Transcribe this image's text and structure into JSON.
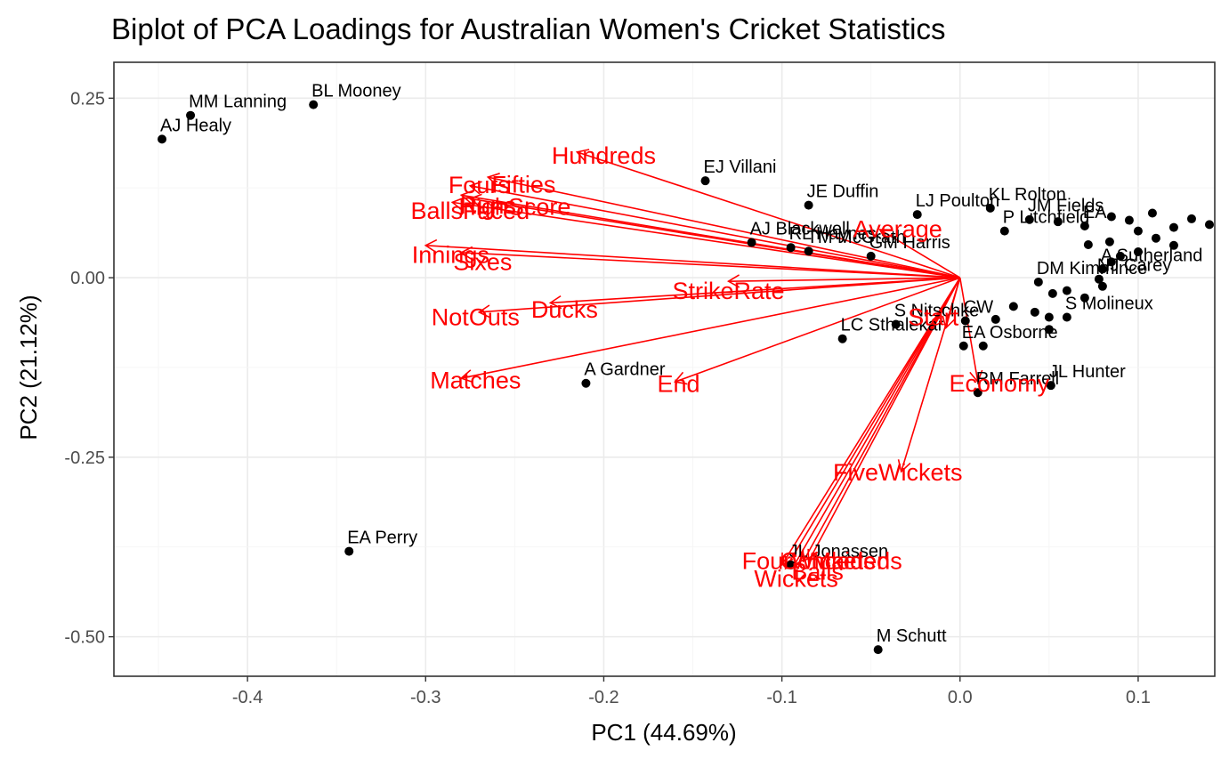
{
  "chart_data": {
    "type": "scatter",
    "title": "Biplot of PCA Loadings for Australian Women's Cricket Statistics",
    "xlabel": "PC1 (44.69%)",
    "ylabel": "PC2 (21.12%)",
    "xlim": [
      -0.475,
      0.143
    ],
    "ylim": [
      -0.555,
      0.3
    ],
    "xticks": [
      -0.4,
      -0.3,
      -0.2,
      -0.1,
      0.0,
      0.1
    ],
    "xtick_labels": [
      "-0.4",
      "-0.3",
      "-0.2",
      "-0.1",
      "0.0",
      "0.1"
    ],
    "yticks": [
      0.25,
      0.0,
      -0.25,
      -0.5
    ],
    "ytick_labels": [
      "0.25",
      "0.00",
      "-0.25",
      "-0.50"
    ],
    "grid": true,
    "point_color": "#000000",
    "loading_color": "#ff0000",
    "arrow_origin": [
      0.0,
      0.0
    ],
    "points": [
      {
        "label": "AJ Healy",
        "x": -0.448,
        "y": 0.193
      },
      {
        "label": "MM Lanning",
        "x": -0.432,
        "y": 0.226
      },
      {
        "label": "BL Mooney",
        "x": -0.363,
        "y": 0.241
      },
      {
        "label": "EJ Villani",
        "x": -0.143,
        "y": 0.135
      },
      {
        "label": "JE Duffin",
        "x": -0.085,
        "y": 0.101
      },
      {
        "label": "AJ Blackwell",
        "x": -0.117,
        "y": 0.049
      },
      {
        "label": "RL Haynes",
        "x": -0.095,
        "y": 0.042
      },
      {
        "label": "TM McGrath",
        "x": -0.085,
        "y": 0.037
      },
      {
        "label": "GM Harris",
        "x": -0.05,
        "y": 0.03
      },
      {
        "label": "LJ Poulton",
        "x": -0.024,
        "y": 0.088
      },
      {
        "label": "KL Rolton",
        "x": 0.017,
        "y": 0.097
      },
      {
        "label": "P Litchfield",
        "x": 0.025,
        "y": 0.065
      },
      {
        "label": "JM Fields",
        "x": 0.039,
        "y": 0.081
      },
      {
        "label": "",
        "x": 0.055,
        "y": 0.078
      },
      {
        "label": "EA",
        "x": 0.07,
        "y": 0.072
      },
      {
        "label": "",
        "x": 0.085,
        "y": 0.085
      },
      {
        "label": "",
        "x": 0.095,
        "y": 0.08
      },
      {
        "label": "",
        "x": 0.108,
        "y": 0.09
      },
      {
        "label": "",
        "x": 0.12,
        "y": 0.07
      },
      {
        "label": "",
        "x": 0.13,
        "y": 0.082
      },
      {
        "label": "",
        "x": 0.14,
        "y": 0.074
      },
      {
        "label": "",
        "x": 0.1,
        "y": 0.065
      },
      {
        "label": "",
        "x": 0.11,
        "y": 0.055
      },
      {
        "label": "",
        "x": 0.12,
        "y": 0.045
      },
      {
        "label": "",
        "x": 0.084,
        "y": 0.05
      },
      {
        "label": "",
        "x": 0.09,
        "y": 0.03
      },
      {
        "label": "",
        "x": 0.072,
        "y": 0.046
      },
      {
        "label": "",
        "x": 0.1,
        "y": 0.036
      },
      {
        "label": "A Sutherland",
        "x": 0.08,
        "y": 0.012
      },
      {
        "label": "",
        "x": 0.085,
        "y": 0.022
      },
      {
        "label": "NJ Carey",
        "x": 0.078,
        "y": -0.002
      },
      {
        "label": "DM Kimmince",
        "x": 0.044,
        "y": -0.006
      },
      {
        "label": "",
        "x": 0.052,
        "y": -0.022
      },
      {
        "label": "",
        "x": 0.06,
        "y": -0.018
      },
      {
        "label": "",
        "x": 0.07,
        "y": -0.028
      },
      {
        "label": "",
        "x": 0.08,
        "y": -0.012
      },
      {
        "label": "S Nitschke",
        "x": -0.036,
        "y": -0.065
      },
      {
        "label": "CW",
        "x": 0.003,
        "y": -0.06
      },
      {
        "label": "",
        "x": 0.02,
        "y": -0.058
      },
      {
        "label": "",
        "x": 0.03,
        "y": -0.04
      },
      {
        "label": "",
        "x": 0.042,
        "y": -0.048
      },
      {
        "label": "",
        "x": 0.05,
        "y": -0.055
      },
      {
        "label": "S Molineux",
        "x": 0.06,
        "y": -0.055
      },
      {
        "label": "",
        "x": 0.05,
        "y": -0.072
      },
      {
        "label": "LC Sthalekar",
        "x": -0.066,
        "y": -0.085
      },
      {
        "label": "EA Osborne",
        "x": 0.002,
        "y": -0.095
      },
      {
        "label": "",
        "x": 0.013,
        "y": -0.095
      },
      {
        "label": "A Gardner",
        "x": -0.21,
        "y": -0.147
      },
      {
        "label": "RM Farrell",
        "x": 0.01,
        "y": -0.16
      },
      {
        "label": "JL Hunter",
        "x": 0.051,
        "y": -0.15
      },
      {
        "label": "EA Perry",
        "x": -0.343,
        "y": -0.381
      },
      {
        "label": "JL Jonassen",
        "x": -0.095,
        "y": -0.4
      },
      {
        "label": "M Schutt",
        "x": -0.046,
        "y": -0.518
      }
    ],
    "loadings": [
      {
        "name": "Hundreds",
        "x": -0.215,
        "y": 0.175,
        "lx": -0.2,
        "ly": 0.171
      },
      {
        "name": "Fifties",
        "x": -0.265,
        "y": 0.14,
        "lx": -0.245,
        "ly": 0.131
      },
      {
        "name": "Fours",
        "x": -0.275,
        "y": 0.128,
        "lx": -0.27,
        "ly": 0.13
      },
      {
        "name": "Runs",
        "x": -0.28,
        "y": 0.115,
        "lx": -0.265,
        "ly": 0.102
      },
      {
        "name": "HighScore",
        "x": -0.275,
        "y": 0.11,
        "lx": -0.25,
        "ly": 0.1
      },
      {
        "name": "BallsFaced",
        "x": -0.285,
        "y": 0.105,
        "lx": -0.275,
        "ly": 0.094
      },
      {
        "name": "Innings",
        "x": -0.3,
        "y": 0.045,
        "lx": -0.286,
        "ly": 0.033
      },
      {
        "name": "Sixes",
        "x": -0.28,
        "y": 0.035,
        "lx": -0.268,
        "ly": 0.023
      },
      {
        "name": "Ducks",
        "x": -0.23,
        "y": -0.035,
        "lx": -0.222,
        "ly": -0.043
      },
      {
        "name": "NotOuts",
        "x": -0.27,
        "y": -0.048,
        "lx": -0.272,
        "ly": -0.054
      },
      {
        "name": "StrikeRate",
        "x": -0.13,
        "y": -0.005,
        "lx": -0.13,
        "ly": -0.017
      },
      {
        "name": "Matches",
        "x": -0.28,
        "y": -0.14,
        "lx": -0.272,
        "ly": -0.142
      },
      {
        "name": "End",
        "x": -0.16,
        "y": -0.145,
        "lx": -0.158,
        "ly": -0.147
      },
      {
        "name": "Average",
        "x": -0.045,
        "y": 0.067,
        "lx": -0.035,
        "ly": 0.069
      },
      {
        "name": "Start",
        "x": -0.008,
        "y": -0.07,
        "lx": -0.015,
        "ly": -0.054
      },
      {
        "name": "Economy",
        "x": 0.01,
        "y": -0.145,
        "lx": 0.022,
        "ly": -0.146
      },
      {
        "name": "FiveWickets",
        "x": -0.033,
        "y": -0.27,
        "lx": -0.035,
        "ly": -0.27
      },
      {
        "name": "FourWickets",
        "x": -0.1,
        "y": -0.4,
        "lx": -0.085,
        "ly": -0.393
      },
      {
        "name": "Conceded",
        "x": -0.085,
        "y": -0.395,
        "lx": -0.07,
        "ly": -0.393
      },
      {
        "name": "Maidens",
        "x": -0.088,
        "y": -0.395,
        "lx": -0.058,
        "ly": -0.393
      },
      {
        "name": "Balls",
        "x": -0.093,
        "y": -0.4,
        "lx": -0.08,
        "ly": -0.408
      },
      {
        "name": "Wickets",
        "x": -0.098,
        "y": -0.405,
        "lx": -0.092,
        "ly": -0.418
      }
    ]
  }
}
